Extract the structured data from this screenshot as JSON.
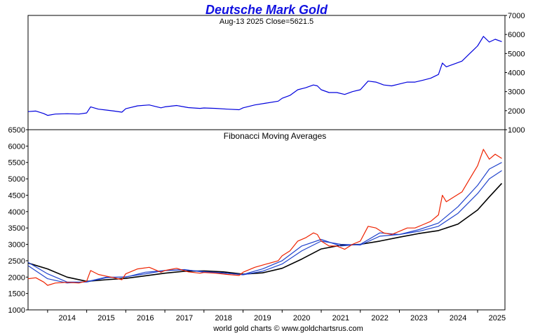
{
  "chart_data": [
    {
      "type": "line",
      "title": "Deutsche Mark Gold",
      "subtitle": "Aug-13  2025   Close=5621.5",
      "ylim": [
        1000,
        7000
      ],
      "y_ticks": [
        1000,
        2000,
        3000,
        4000,
        5000,
        6000,
        7000
      ],
      "xlim": [
        2013.5,
        2025.7
      ],
      "series": [
        {
          "color": "#0000dd",
          "x": [
            2013.5,
            2013.7,
            2013.9,
            2014.0,
            2014.2,
            2014.5,
            2014.8,
            2015.0,
            2015.1,
            2015.3,
            2015.5,
            2015.7,
            2015.9,
            2016.0,
            2016.3,
            2016.6,
            2016.9,
            2017.0,
            2017.3,
            2017.6,
            2017.9,
            2018.0,
            2018.3,
            2018.6,
            2018.9,
            2019.0,
            2019.3,
            2019.6,
            2019.9,
            2020.0,
            2020.2,
            2020.4,
            2020.6,
            2020.8,
            2020.9,
            2021.0,
            2021.2,
            2021.4,
            2021.6,
            2021.8,
            2022.0,
            2022.2,
            2022.4,
            2022.6,
            2022.8,
            2023.0,
            2023.2,
            2023.4,
            2023.6,
            2023.8,
            2024.0,
            2024.1,
            2024.2,
            2024.4,
            2024.6,
            2024.8,
            2024.9,
            2025.0,
            2025.15,
            2025.3,
            2025.45,
            2025.62
          ],
          "y": [
            1950,
            1980,
            1850,
            1750,
            1820,
            1840,
            1820,
            1880,
            2200,
            2080,
            2030,
            1980,
            1920,
            2100,
            2250,
            2300,
            2150,
            2200,
            2270,
            2160,
            2120,
            2140,
            2120,
            2080,
            2050,
            2150,
            2300,
            2400,
            2500,
            2650,
            2800,
            3100,
            3200,
            3350,
            3300,
            3100,
            2950,
            2950,
            2850,
            3000,
            3100,
            3550,
            3500,
            3350,
            3300,
            3400,
            3500,
            3500,
            3600,
            3700,
            3900,
            4500,
            4300,
            4450,
            4600,
            5000,
            5200,
            5400,
            5900,
            5600,
            5750,
            5621.5
          ]
        }
      ]
    },
    {
      "type": "line",
      "title": "Fibonacci Moving Averages",
      "ylim": [
        1000,
        6500
      ],
      "y_ticks": [
        1000,
        1500,
        2000,
        2500,
        3000,
        3500,
        4000,
        4500,
        5000,
        5500,
        6000,
        6500
      ],
      "xlim": [
        2013.5,
        2025.7
      ],
      "x_ticks": [
        "2014",
        "2015",
        "2016",
        "2017",
        "2018",
        "2019",
        "2020",
        "2021",
        "2022",
        "2023",
        "2024",
        "2025"
      ],
      "series": [
        {
          "color": "#ee2200",
          "x": [
            2013.5,
            2013.7,
            2013.9,
            2014.0,
            2014.2,
            2014.5,
            2014.8,
            2015.0,
            2015.1,
            2015.3,
            2015.5,
            2015.7,
            2015.9,
            2016.0,
            2016.3,
            2016.6,
            2016.9,
            2017.0,
            2017.3,
            2017.6,
            2017.9,
            2018.0,
            2018.3,
            2018.6,
            2018.9,
            2019.0,
            2019.3,
            2019.6,
            2019.9,
            2020.0,
            2020.2,
            2020.4,
            2020.6,
            2020.8,
            2020.9,
            2021.0,
            2021.2,
            2021.4,
            2021.6,
            2021.8,
            2022.0,
            2022.2,
            2022.4,
            2022.6,
            2022.8,
            2023.0,
            2023.2,
            2023.4,
            2023.6,
            2023.8,
            2024.0,
            2024.1,
            2024.2,
            2024.4,
            2024.6,
            2024.8,
            2024.9,
            2025.0,
            2025.15,
            2025.3,
            2025.45,
            2025.62
          ],
          "y": [
            1950,
            1980,
            1850,
            1750,
            1820,
            1840,
            1820,
            1880,
            2200,
            2080,
            2030,
            1980,
            1920,
            2100,
            2250,
            2300,
            2150,
            2200,
            2270,
            2160,
            2120,
            2140,
            2120,
            2080,
            2050,
            2150,
            2300,
            2400,
            2500,
            2650,
            2800,
            3100,
            3200,
            3350,
            3300,
            3100,
            2950,
            2950,
            2850,
            3000,
            3100,
            3550,
            3500,
            3350,
            3300,
            3400,
            3500,
            3500,
            3600,
            3700,
            3900,
            4500,
            4300,
            4450,
            4600,
            5000,
            5200,
            5400,
            5900,
            5600,
            5750,
            5621.5
          ]
        },
        {
          "color": "#2244cc",
          "x": [
            2013.5,
            2014.0,
            2014.5,
            2015.0,
            2015.5,
            2016.0,
            2016.5,
            2017.0,
            2017.5,
            2018.0,
            2018.5,
            2019.0,
            2019.5,
            2020.0,
            2020.5,
            2021.0,
            2021.5,
            2022.0,
            2022.5,
            2023.0,
            2023.5,
            2024.0,
            2024.5,
            2025.0,
            2025.3,
            2025.62
          ],
          "y": [
            2350,
            1950,
            1820,
            1860,
            2000,
            2000,
            2150,
            2200,
            2230,
            2150,
            2120,
            2080,
            2250,
            2500,
            2950,
            3150,
            2950,
            3000,
            3350,
            3300,
            3450,
            3650,
            4150,
            4800,
            5300,
            5500
          ]
        },
        {
          "color": "#2244cc",
          "x": [
            2013.5,
            2014.0,
            2014.5,
            2015.0,
            2015.5,
            2016.0,
            2016.5,
            2017.0,
            2017.5,
            2018.0,
            2018.5,
            2019.0,
            2019.5,
            2020.0,
            2020.5,
            2021.0,
            2021.5,
            2022.0,
            2022.5,
            2023.0,
            2023.5,
            2024.0,
            2024.5,
            2025.0,
            2025.3,
            2025.62
          ],
          "y": [
            2450,
            2100,
            1850,
            1850,
            1980,
            2010,
            2100,
            2200,
            2220,
            2170,
            2130,
            2070,
            2180,
            2400,
            2800,
            3100,
            3000,
            2980,
            3250,
            3300,
            3400,
            3550,
            3950,
            4550,
            5000,
            5250
          ]
        },
        {
          "color": "#000000",
          "x": [
            2013.5,
            2014.0,
            2014.5,
            2015.0,
            2015.5,
            2016.0,
            2016.5,
            2017.0,
            2017.5,
            2018.0,
            2018.5,
            2019.0,
            2019.5,
            2020.0,
            2020.5,
            2021.0,
            2021.5,
            2022.0,
            2022.5,
            2023.0,
            2023.5,
            2024.0,
            2024.5,
            2025.0,
            2025.3,
            2025.62
          ],
          "y": [
            2430,
            2250,
            2000,
            1870,
            1920,
            1960,
            2040,
            2120,
            2180,
            2190,
            2160,
            2090,
            2130,
            2270,
            2550,
            2860,
            2970,
            3000,
            3100,
            3220,
            3330,
            3420,
            3620,
            4050,
            4450,
            4860
          ]
        }
      ]
    }
  ],
  "footer": "world gold charts © www.goldchartsrus.com"
}
